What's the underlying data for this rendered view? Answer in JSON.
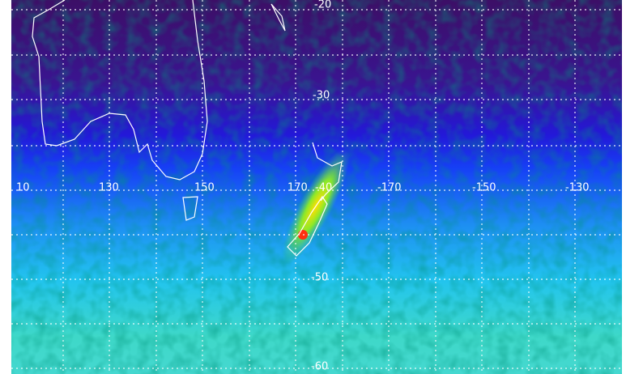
{
  "map": {
    "latitude_labels": [
      "-20",
      "-30",
      "-40",
      "-50",
      "-60"
    ],
    "longitude_labels": [
      "10",
      "130",
      "150",
      "170",
      "-170",
      "-150",
      "-130"
    ]
  }
}
